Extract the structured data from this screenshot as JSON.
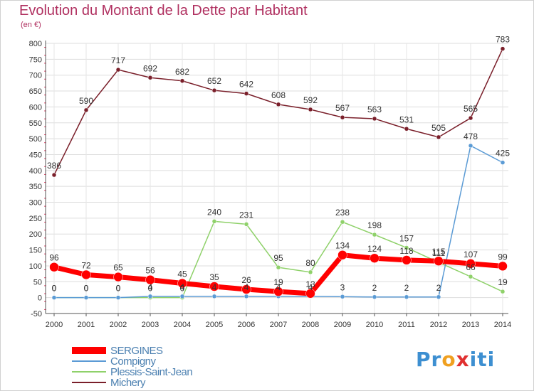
{
  "header": {
    "title": "Evolution du Montant de la Dette par Habitant",
    "unit": "(en €)"
  },
  "logo": {
    "text": "Proxiti",
    "letters": [
      "P",
      "r",
      "o",
      "x",
      "i",
      "t",
      "i"
    ],
    "letter_colors": [
      "#3d8fd1",
      "#3d8fd1",
      "#f0a020",
      "#e03030",
      "#3d8fd1",
      "#3d8fd1",
      "#3d8fd1"
    ]
  },
  "chart_data": {
    "type": "line",
    "title": "Evolution du Montant de la Dette par Habitant",
    "ylabel": "(en €)",
    "xlabel": "",
    "x": [
      "2000",
      "2001",
      "2002",
      "2003",
      "2004",
      "2005",
      "2006",
      "2007",
      "2008",
      "2009",
      "2010",
      "2011",
      "2012",
      "2013",
      "2014"
    ],
    "ylim": [
      -50,
      800
    ],
    "yticks": [
      -50,
      0,
      50,
      100,
      150,
      200,
      250,
      300,
      350,
      400,
      450,
      500,
      550,
      600,
      650,
      700,
      750,
      800
    ],
    "grid": true,
    "legend_position": "bottom-left",
    "series": [
      {
        "name": "Michery",
        "color": "#7a1f2a",
        "values": [
          386,
          590,
          717,
          692,
          682,
          652,
          642,
          608,
          592,
          567,
          563,
          531,
          505,
          565,
          783
        ]
      },
      {
        "name": "Plessis-Saint-Jean",
        "color": "#8fd16a",
        "values": [
          0,
          0,
          0,
          0,
          0,
          240,
          231,
          95,
          80,
          238,
          198,
          157,
          111,
          66,
          19
        ]
      },
      {
        "name": "Compigny",
        "color": "#5b9bd5",
        "values": [
          0,
          0,
          0,
          4,
          4,
          4,
          4,
          4,
          4,
          3,
          2,
          2,
          2,
          478,
          425
        ]
      },
      {
        "name": "SERGINES",
        "color": "#ff0000",
        "values": [
          96,
          72,
          65,
          56,
          45,
          35,
          26,
          19,
          13,
          134,
          124,
          118,
          115,
          107,
          99
        ]
      }
    ]
  }
}
